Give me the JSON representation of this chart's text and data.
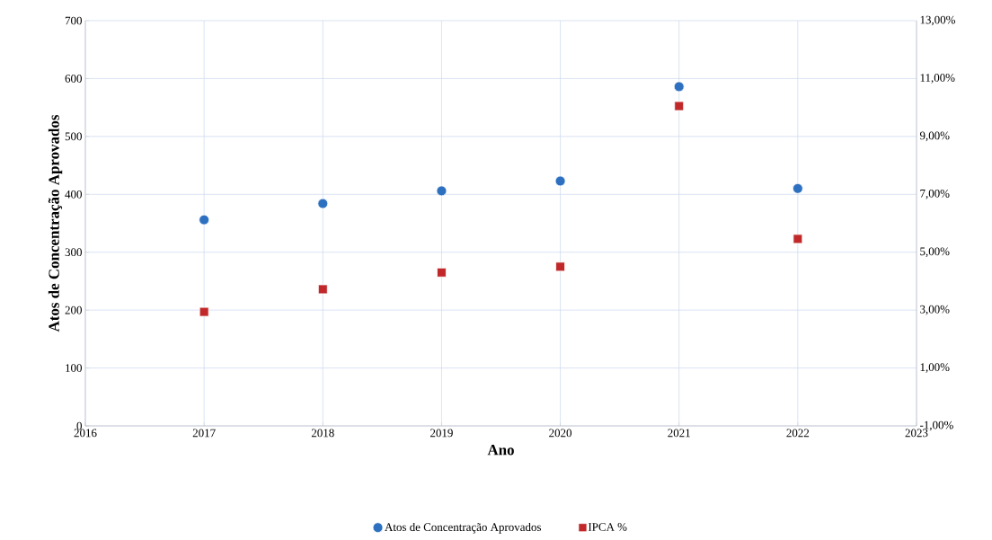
{
  "chart_data": {
    "type": "scatter",
    "xlabel": "Ano",
    "ylabel": "Atos de Concentração Aprovados",
    "x": [
      2017,
      2018,
      2019,
      2020,
      2021,
      2022
    ],
    "series": [
      {
        "name": "Atos de Concentração Aprovados",
        "color": "#2e70c0",
        "marker": "circle",
        "values": [
          356,
          384,
          406,
          423,
          586,
          410
        ]
      },
      {
        "name": "IPCA %",
        "color": "#c0282a",
        "marker": "square",
        "axis": "y2",
        "values": [
          2.94,
          3.72,
          4.3,
          4.5,
          10.05,
          5.46
        ]
      }
    ],
    "xlim": [
      2016,
      2023
    ],
    "xticks": [
      2016,
      2017,
      2018,
      2019,
      2020,
      2021,
      2022,
      2023
    ],
    "ylim": [
      0,
      700
    ],
    "yticks": [
      0,
      100,
      200,
      300,
      400,
      500,
      600,
      700
    ],
    "y2lim": [
      -1,
      13
    ],
    "y2ticks": [
      {
        "value": -1,
        "label": "-1,00%"
      },
      {
        "value": 1,
        "label": "1,00%"
      },
      {
        "value": 3,
        "label": "3,00%"
      },
      {
        "value": 5,
        "label": "5,00%"
      },
      {
        "value": 7,
        "label": "7,00%"
      },
      {
        "value": 9,
        "label": "9,00%"
      },
      {
        "value": 11,
        "label": "11,00%"
      },
      {
        "value": 13,
        "label": "13,00%"
      }
    ],
    "grid": true,
    "legend": "bottom"
  }
}
